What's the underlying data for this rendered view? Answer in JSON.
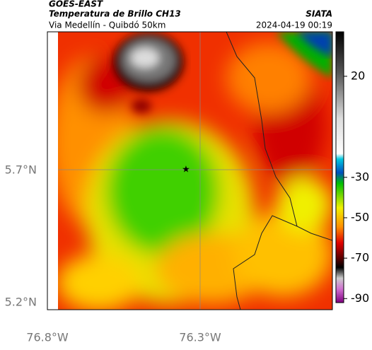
{
  "header": {
    "satellite": "GOES-EAST",
    "product": "Temperatura de Brillo CH13",
    "route": "Via Medellín - Quibdó 50km",
    "source": "SIATA",
    "timestamp": "2024-04-19 00:19"
  },
  "map": {
    "lat_labels": [
      "5.7°N",
      "5.2°N"
    ],
    "lon_labels": [
      "76.8°W",
      "76.3°W"
    ]
  },
  "colorbar": {
    "lim": [
      -92,
      42
    ],
    "ticks": [
      20,
      -30,
      -50,
      -70,
      -90
    ]
  }
}
